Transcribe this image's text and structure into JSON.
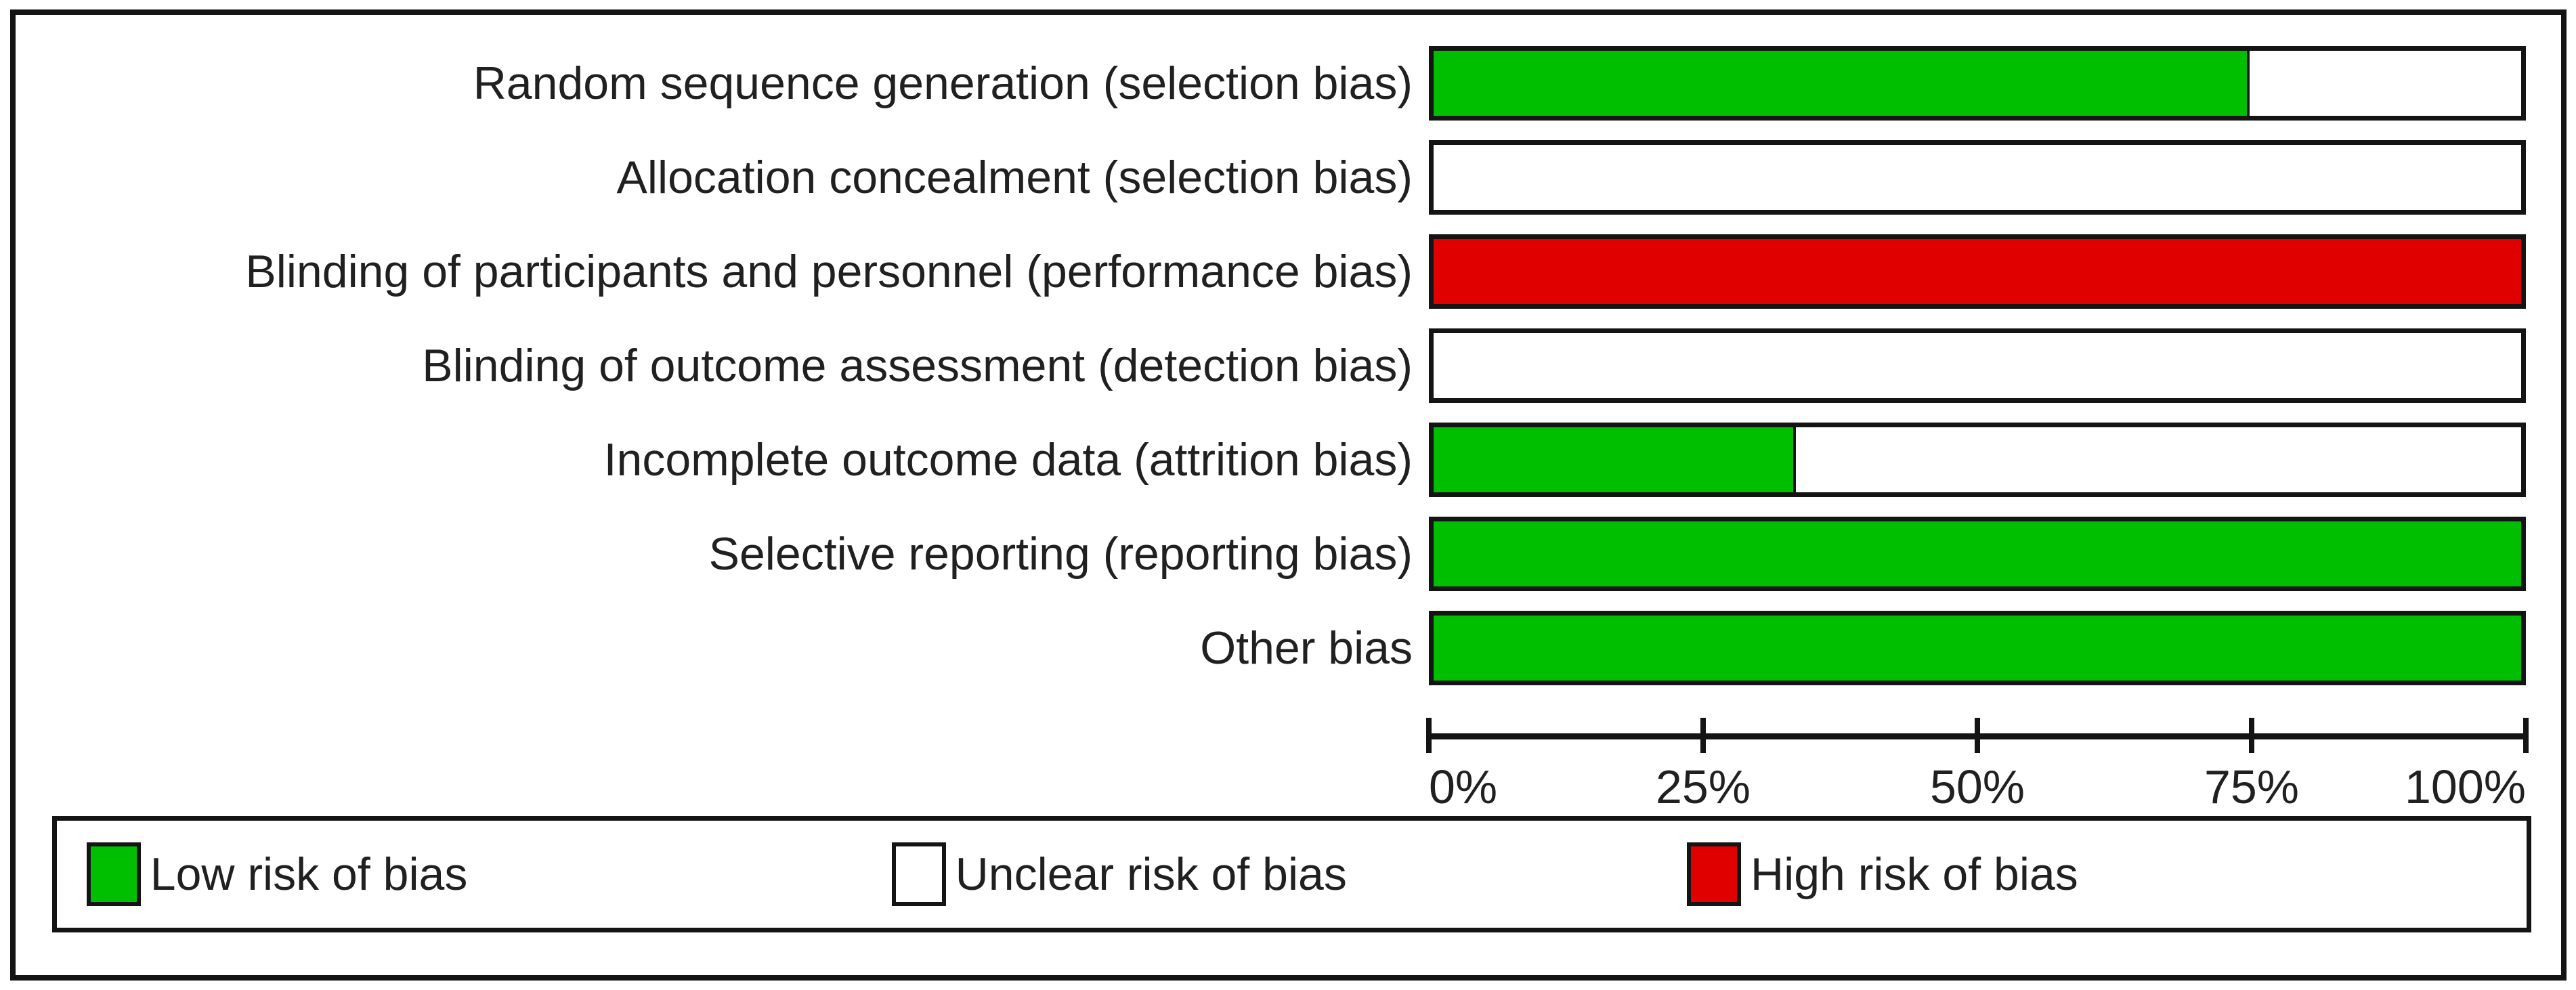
{
  "chart_data": {
    "type": "bar",
    "orientation": "horizontal",
    "stacked": true,
    "unit": "percent",
    "categories": [
      "Random sequence generation (selection bias)",
      "Allocation concealment (selection bias)",
      "Blinding of participants and personnel (performance bias)",
      "Blinding of outcome assessment (detection bias)",
      "Incomplete outcome data (attrition bias)",
      "Selective reporting (reporting bias)",
      "Other bias"
    ],
    "series": [
      {
        "key": "low",
        "name": "Low risk of bias",
        "color": "#00BE00",
        "values": [
          75,
          0,
          0,
          0,
          33.3,
          100,
          100
        ]
      },
      {
        "key": "unclear",
        "name": "Unclear risk of bias",
        "color": "#FFFFFF",
        "values": [
          25,
          100,
          0,
          100,
          66.7,
          0,
          0
        ]
      },
      {
        "key": "high",
        "name": "High risk of bias",
        "color": "#E10000",
        "values": [
          0,
          0,
          100,
          0,
          0,
          0,
          0
        ]
      }
    ],
    "x_axis": {
      "range": [
        0,
        100
      ],
      "tick_labels": [
        "0%",
        "25%",
        "50%",
        "75%",
        "100%"
      ],
      "grid": false
    },
    "legend": {
      "position": "bottom",
      "entries": [
        "Low risk of bias",
        "Unclear risk of bias",
        "High risk of bias"
      ]
    }
  },
  "colors": {
    "ink": "#141414",
    "background": "#FFFFFF",
    "low_risk": "#00BE00",
    "unclear_risk": "#FFFFFF",
    "high_risk": "#E10000"
  }
}
